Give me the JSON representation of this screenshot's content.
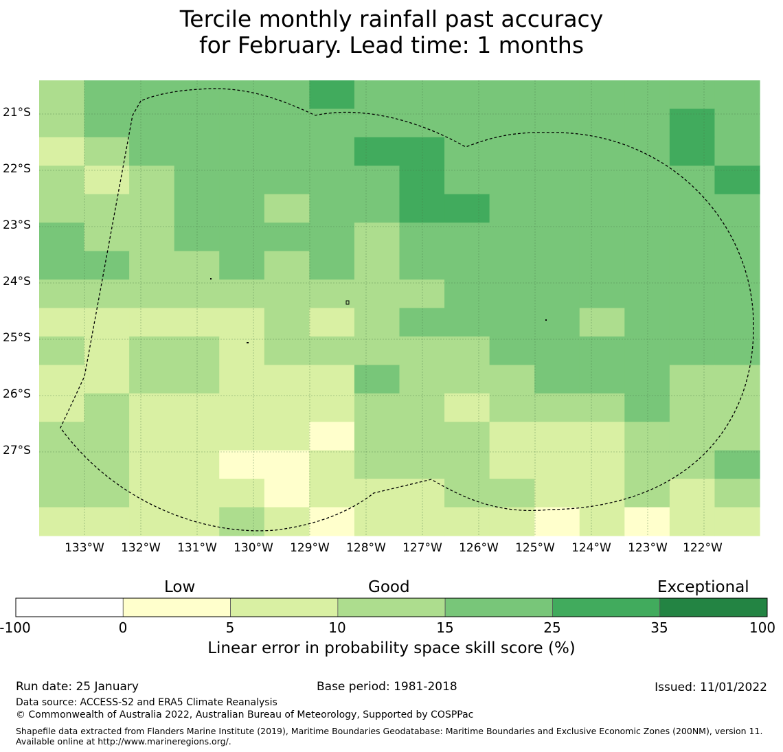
{
  "title": {
    "line1": "Tercile monthly rainfall past accuracy",
    "line2": "for February. Lead time: 1 months"
  },
  "chart_data": {
    "type": "heatmap",
    "title": "Tercile monthly rainfall past accuracy for February. Lead time: 1 months",
    "xlabel": "",
    "ylabel": "",
    "lon_ticks": [
      -133,
      -132,
      -131,
      -130,
      -129,
      -128,
      -127,
      -126,
      -125,
      -124,
      -123,
      -122
    ],
    "lon_tick_labels": [
      "133°W",
      "132°W",
      "131°W",
      "130°W",
      "129°W",
      "128°W",
      "127°W",
      "126°W",
      "125°W",
      "124°W",
      "123°W",
      "122°W"
    ],
    "lat_ticks": [
      -21,
      -22,
      -23,
      -24,
      -25,
      -26,
      -27
    ],
    "lat_tick_labels": [
      "21°S",
      "22°S",
      "23°S",
      "24°S",
      "25°S",
      "26°S",
      "27°S"
    ],
    "grid": true,
    "cell_classes": "class index per grid cell: 2 = 5-10, 3 = 10-15, 4 = 15-25, 5 = 25-35 (0-5 shown as class 1)",
    "cells": [
      [
        3,
        4,
        4,
        4,
        4,
        4,
        5,
        4,
        4,
        4,
        4,
        4,
        4,
        4,
        4,
        4
      ],
      [
        3,
        4,
        4,
        4,
        4,
        4,
        4,
        4,
        4,
        4,
        4,
        4,
        4,
        4,
        5,
        4
      ],
      [
        2,
        3,
        4,
        4,
        4,
        4,
        4,
        5,
        5,
        4,
        4,
        4,
        4,
        4,
        5,
        4
      ],
      [
        3,
        2,
        3,
        4,
        4,
        4,
        4,
        4,
        5,
        4,
        4,
        4,
        4,
        4,
        4,
        5
      ],
      [
        3,
        3,
        3,
        4,
        4,
        3,
        4,
        4,
        5,
        5,
        4,
        4,
        4,
        4,
        4,
        4
      ],
      [
        4,
        3,
        3,
        4,
        4,
        4,
        4,
        3,
        4,
        4,
        4,
        4,
        4,
        4,
        4,
        4
      ],
      [
        4,
        4,
        3,
        3,
        4,
        3,
        4,
        3,
        4,
        4,
        4,
        4,
        4,
        4,
        4,
        4
      ],
      [
        3,
        3,
        3,
        3,
        3,
        3,
        3,
        3,
        3,
        4,
        4,
        4,
        4,
        4,
        4,
        4
      ],
      [
        2,
        2,
        2,
        2,
        2,
        3,
        2,
        3,
        4,
        4,
        4,
        4,
        3,
        4,
        4,
        4
      ],
      [
        3,
        2,
        3,
        3,
        2,
        3,
        3,
        3,
        3,
        3,
        4,
        4,
        4,
        4,
        4,
        4
      ],
      [
        2,
        2,
        3,
        3,
        2,
        2,
        2,
        4,
        3,
        3,
        3,
        4,
        4,
        4,
        3,
        3
      ],
      [
        2,
        3,
        2,
        2,
        2,
        2,
        2,
        3,
        3,
        2,
        3,
        3,
        3,
        4,
        3,
        3
      ],
      [
        3,
        3,
        2,
        2,
        2,
        2,
        1,
        3,
        3,
        3,
        2,
        2,
        2,
        3,
        3,
        3
      ],
      [
        3,
        3,
        2,
        2,
        1,
        1,
        2,
        3,
        3,
        3,
        2,
        2,
        2,
        3,
        3,
        4
      ],
      [
        3,
        3,
        2,
        2,
        2,
        1,
        2,
        2,
        2,
        3,
        3,
        2,
        2,
        3,
        2,
        3
      ],
      [
        2,
        2,
        2,
        2,
        3,
        2,
        1,
        2,
        2,
        2,
        2,
        1,
        2,
        1,
        2,
        2
      ]
    ]
  },
  "colorbar": {
    "categories": [
      "Low",
      "Good",
      "Exceptional"
    ],
    "ticks": [
      "-100",
      "0",
      "5",
      "10",
      "15",
      "25",
      "35",
      "100"
    ],
    "colors": [
      "#ffffff",
      "#ffffcc",
      "#d9f0a3",
      "#addd8e",
      "#78c679",
      "#41ab5d",
      "#238443"
    ],
    "title": "Linear error in probability space skill score (%)"
  },
  "footer": {
    "run_date": "Run date: 25 January",
    "base_period": "Base period: 1981-2018",
    "issued": "Issued: 11/01/2022",
    "data_source": "Data source: ACCESS-S2 and ERA5 Climate Reanalysis",
    "copyright": "© Commonwealth of Australia 2022, Australian Bureau of Meteorology, Supported by COSPPac",
    "shapefile": "Shapefile data extracted from Flanders Marine Institute (2019), Maritime Boundaries Geodatabase: Maritime Boundaries and Exclusive Economic Zones (200NM), version 11. Available online at http://www.marineregions.org/."
  }
}
